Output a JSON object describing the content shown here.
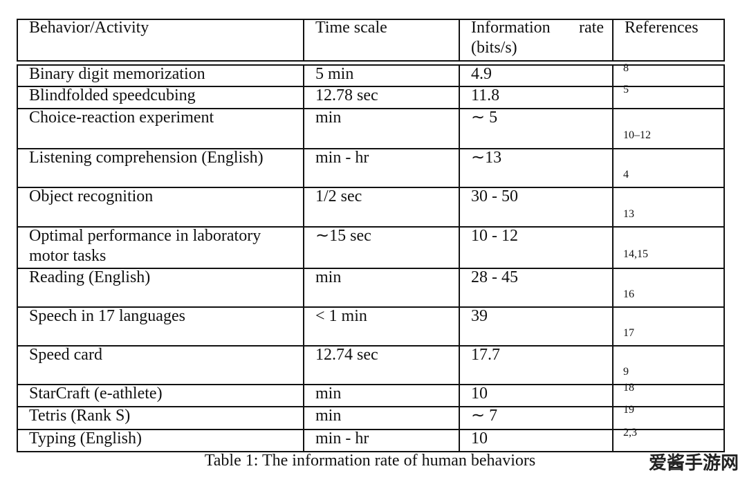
{
  "table": {
    "header": [
      "Behavior/Activity",
      "Time scale",
      "Information rate (bits/s)",
      "References"
    ],
    "rows": [
      [
        "Binary digit memorization",
        "5 min",
        "4.9",
        "8"
      ],
      [
        "Blindfolded speedcubing",
        "12.78 sec",
        "11.8",
        "5"
      ],
      [
        "Choice-reaction experiment",
        "min",
        "∼ 5",
        "10–12"
      ],
      [
        "Listening comprehension (English)",
        "min - hr",
        "∼13",
        "4"
      ],
      [
        "Object recognition",
        "1/2 sec",
        "30 - 50",
        "13"
      ],
      [
        "Optimal performance in laboratory motor tasks",
        "∼15 sec",
        "10 - 12",
        "14,15"
      ],
      [
        "Reading (English)",
        "min",
        "28 - 45",
        "16"
      ],
      [
        "Speech in 17 languages",
        "< 1 min",
        "39",
        "17"
      ],
      [
        "Speed card",
        "12.74 sec",
        "17.7",
        "9"
      ],
      [
        "StarCraft (e-athlete)",
        "min",
        "10",
        "18"
      ],
      [
        "Tetris (Rank S)",
        "min",
        "∼ 7",
        "19"
      ],
      [
        "Typing (English)",
        "min - hr",
        "10",
        "2,3"
      ]
    ],
    "caption": "Table 1: The information rate of human behaviors"
  },
  "watermark": "爱酱手游网"
}
